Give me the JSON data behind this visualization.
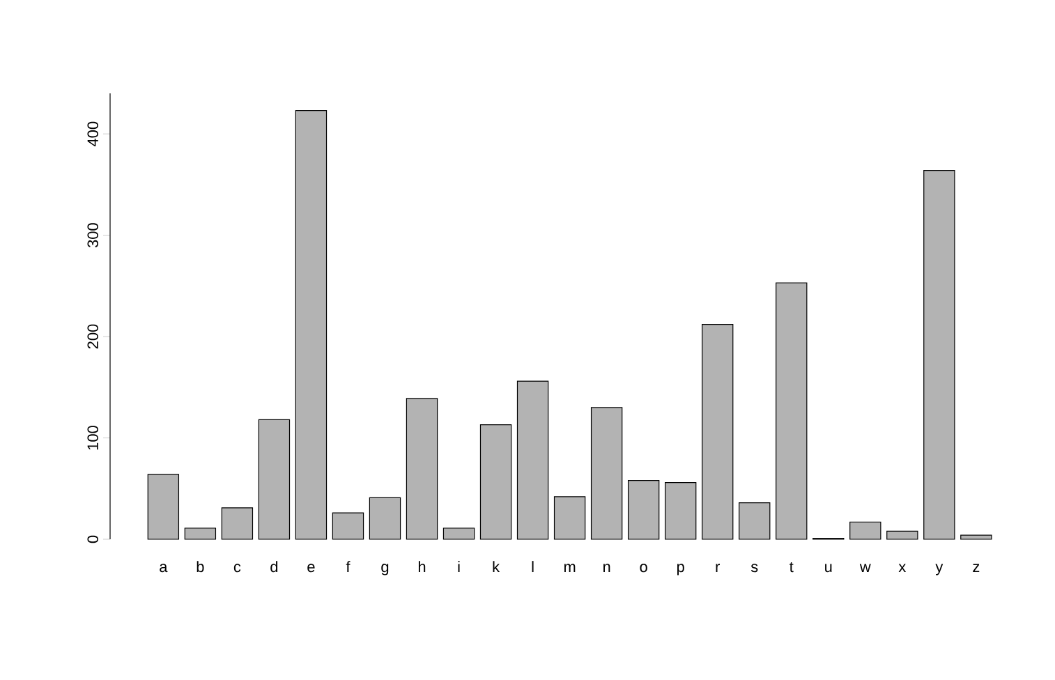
{
  "chart_data": {
    "type": "bar",
    "categories": [
      "a",
      "b",
      "c",
      "d",
      "e",
      "f",
      "g",
      "h",
      "i",
      "k",
      "l",
      "m",
      "n",
      "o",
      "p",
      "r",
      "s",
      "t",
      "u",
      "w",
      "x",
      "y",
      "z"
    ],
    "values": [
      64,
      11,
      31,
      118,
      423,
      26,
      41,
      139,
      11,
      113,
      156,
      42,
      130,
      58,
      56,
      212,
      36,
      253,
      1,
      17,
      8,
      364,
      4
    ],
    "color": "#b3b3b3",
    "ylim": [
      0,
      440
    ],
    "yticks": [
      0,
      100,
      200,
      300,
      400
    ],
    "grid": false
  }
}
